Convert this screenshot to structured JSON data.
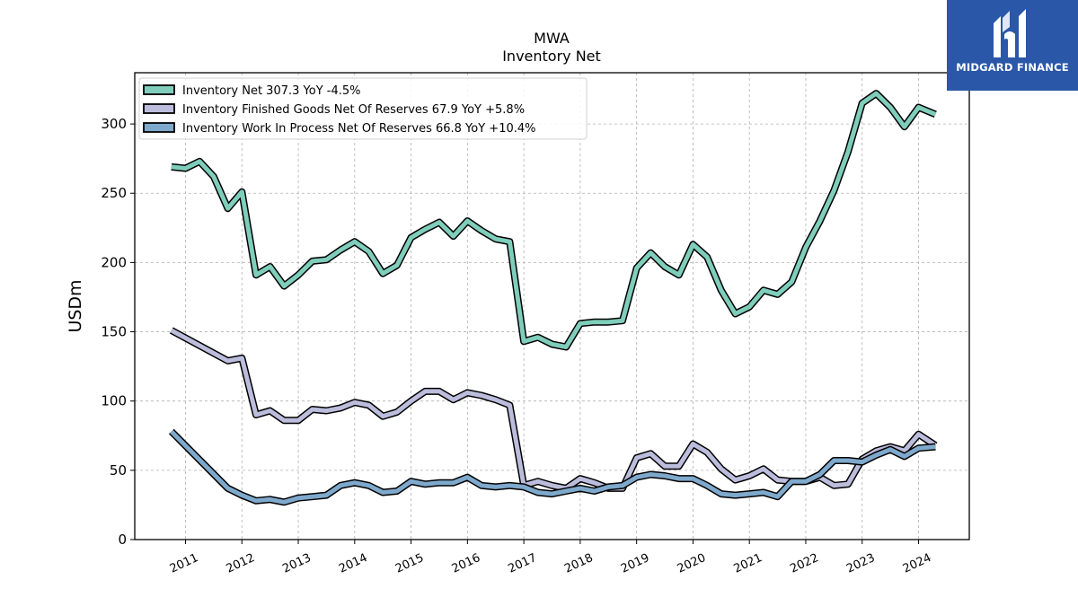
{
  "chart_data": {
    "type": "line",
    "title": "MWA",
    "subtitle": "Inventory Net",
    "ylabel": "USDm",
    "xlabel": "",
    "ylim": [
      0,
      337
    ],
    "xlim": [
      2010.1,
      2024.9
    ],
    "yticks": [
      0,
      50,
      100,
      150,
      200,
      250,
      300
    ],
    "xticks": [
      "2011",
      "2012",
      "2013",
      "2014",
      "2015",
      "2016",
      "2017",
      "2018",
      "2019",
      "2020",
      "2021",
      "2022",
      "2023",
      "2024"
    ],
    "grid": true,
    "legend_position": "top-left",
    "series": [
      {
        "name": "Inventory Net",
        "legend": "Inventory Net  307.3 YoY -4.5%",
        "color": "#7fcdbb",
        "points": [
          [
            2010.75,
            269
          ],
          [
            2011.0,
            268
          ],
          [
            2011.25,
            273
          ],
          [
            2011.5,
            262
          ],
          [
            2011.75,
            239
          ],
          [
            2012.0,
            251
          ],
          [
            2012.25,
            191
          ],
          [
            2012.5,
            197
          ],
          [
            2012.75,
            183
          ],
          [
            2013.0,
            191
          ],
          [
            2013.25,
            201
          ],
          [
            2013.5,
            202
          ],
          [
            2013.75,
            209
          ],
          [
            2014.0,
            215
          ],
          [
            2014.25,
            208
          ],
          [
            2014.5,
            192
          ],
          [
            2014.75,
            198
          ],
          [
            2015.0,
            218
          ],
          [
            2015.25,
            224
          ],
          [
            2015.5,
            229
          ],
          [
            2015.75,
            219
          ],
          [
            2016.0,
            230
          ],
          [
            2016.25,
            223
          ],
          [
            2016.5,
            217
          ],
          [
            2016.75,
            215
          ],
          [
            2017.0,
            143
          ],
          [
            2017.25,
            146
          ],
          [
            2017.5,
            141
          ],
          [
            2017.75,
            139
          ],
          [
            2018.0,
            156
          ],
          [
            2018.25,
            157
          ],
          [
            2018.5,
            157
          ],
          [
            2018.75,
            158
          ],
          [
            2019.0,
            196
          ],
          [
            2019.25,
            207
          ],
          [
            2019.5,
            197
          ],
          [
            2019.75,
            191
          ],
          [
            2020.0,
            213
          ],
          [
            2020.25,
            204
          ],
          [
            2020.5,
            180
          ],
          [
            2020.75,
            163
          ],
          [
            2021.0,
            168
          ],
          [
            2021.25,
            180
          ],
          [
            2021.5,
            177
          ],
          [
            2021.75,
            186
          ],
          [
            2022.0,
            211
          ],
          [
            2022.25,
            230
          ],
          [
            2022.5,
            252
          ],
          [
            2022.75,
            280
          ],
          [
            2023.0,
            315
          ],
          [
            2023.25,
            322
          ],
          [
            2023.5,
            312
          ],
          [
            2023.75,
            298
          ],
          [
            2024.0,
            312
          ],
          [
            2024.3,
            307
          ]
        ]
      },
      {
        "name": "Inventory Finished Goods Net Of Reserves",
        "legend": "Inventory Finished Goods Net Of Reserves  67.9 YoY +5.8%",
        "color": "#bcbddc",
        "points": [
          [
            2010.75,
            151
          ],
          [
            2011.75,
            129
          ],
          [
            2012.0,
            131
          ],
          [
            2012.25,
            90
          ],
          [
            2012.5,
            93
          ],
          [
            2012.75,
            86
          ],
          [
            2013.0,
            86
          ],
          [
            2013.25,
            94
          ],
          [
            2013.5,
            93
          ],
          [
            2013.75,
            95
          ],
          [
            2014.0,
            99
          ],
          [
            2014.25,
            97
          ],
          [
            2014.5,
            89
          ],
          [
            2014.75,
            92
          ],
          [
            2015.0,
            100
          ],
          [
            2015.25,
            107
          ],
          [
            2015.5,
            107
          ],
          [
            2015.75,
            101
          ],
          [
            2016.0,
            106
          ],
          [
            2016.25,
            104
          ],
          [
            2016.5,
            101
          ],
          [
            2016.75,
            97
          ],
          [
            2017.0,
            39
          ],
          [
            2017.25,
            42
          ],
          [
            2017.5,
            39
          ],
          [
            2017.75,
            37
          ],
          [
            2018.0,
            44
          ],
          [
            2018.25,
            41
          ],
          [
            2018.5,
            37
          ],
          [
            2018.75,
            37
          ],
          [
            2019.0,
            59
          ],
          [
            2019.25,
            62
          ],
          [
            2019.5,
            53
          ],
          [
            2019.75,
            53
          ],
          [
            2020.0,
            69
          ],
          [
            2020.25,
            63
          ],
          [
            2020.5,
            51
          ],
          [
            2020.75,
            43
          ],
          [
            2021.0,
            46
          ],
          [
            2021.25,
            51
          ],
          [
            2021.5,
            43
          ],
          [
            2021.75,
            42
          ],
          [
            2022.0,
            42
          ],
          [
            2022.25,
            45
          ],
          [
            2022.5,
            39
          ],
          [
            2022.75,
            40
          ],
          [
            2023.0,
            58
          ],
          [
            2023.25,
            64
          ],
          [
            2023.5,
            67
          ],
          [
            2023.75,
            64
          ],
          [
            2024.0,
            76
          ],
          [
            2024.3,
            68
          ]
        ]
      },
      {
        "name": "Inventory Work In Process Net Of Reserves",
        "legend": "Inventory Work In Process Net Of Reserves  66.8 YoY +10.4%",
        "color": "#7ea9cc",
        "points": [
          [
            2010.75,
            78
          ],
          [
            2011.75,
            37
          ],
          [
            2012.0,
            32
          ],
          [
            2012.25,
            28
          ],
          [
            2012.5,
            29
          ],
          [
            2012.75,
            27
          ],
          [
            2013.0,
            30
          ],
          [
            2013.25,
            31
          ],
          [
            2013.5,
            32
          ],
          [
            2013.75,
            39
          ],
          [
            2014.0,
            41
          ],
          [
            2014.25,
            39
          ],
          [
            2014.5,
            34
          ],
          [
            2014.75,
            35
          ],
          [
            2015.0,
            42
          ],
          [
            2015.25,
            40
          ],
          [
            2015.5,
            41
          ],
          [
            2015.75,
            41
          ],
          [
            2016.0,
            45
          ],
          [
            2016.25,
            39
          ],
          [
            2016.5,
            38
          ],
          [
            2016.75,
            39
          ],
          [
            2017.0,
            38
          ],
          [
            2017.25,
            34
          ],
          [
            2017.5,
            33
          ],
          [
            2017.75,
            35
          ],
          [
            2018.0,
            37
          ],
          [
            2018.25,
            35
          ],
          [
            2018.5,
            38
          ],
          [
            2018.75,
            39
          ],
          [
            2019.0,
            45
          ],
          [
            2019.25,
            47
          ],
          [
            2019.5,
            46
          ],
          [
            2019.75,
            44
          ],
          [
            2020.0,
            44
          ],
          [
            2020.25,
            39
          ],
          [
            2020.5,
            33
          ],
          [
            2020.75,
            32
          ],
          [
            2021.0,
            33
          ],
          [
            2021.25,
            34
          ],
          [
            2021.5,
            31
          ],
          [
            2021.75,
            42
          ],
          [
            2022.0,
            42
          ],
          [
            2022.25,
            47
          ],
          [
            2022.5,
            57
          ],
          [
            2022.75,
            57
          ],
          [
            2023.0,
            56
          ],
          [
            2023.25,
            61
          ],
          [
            2023.5,
            65
          ],
          [
            2023.75,
            60
          ],
          [
            2024.0,
            66
          ],
          [
            2024.3,
            67
          ]
        ]
      }
    ]
  },
  "logo": {
    "text": "MIDGARD FINANCE",
    "background": "#2a57a8",
    "icon": "midgard-logo-icon"
  }
}
